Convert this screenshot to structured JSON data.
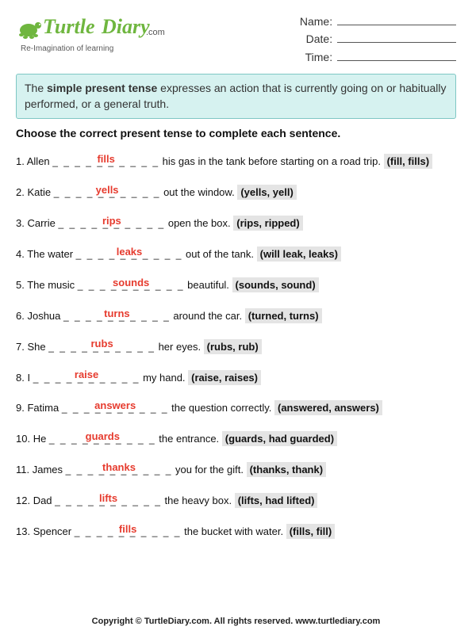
{
  "brand": {
    "name_part1": "Turtle",
    "name_part2": "Diary",
    "dotcom": ".com",
    "tagline": "Re-Imagination of learning",
    "turtle_color": "#6fb63f",
    "text_color": "#6fb63f"
  },
  "meta": {
    "name_label": "Name:",
    "date_label": "Date:",
    "time_label": "Time:"
  },
  "intro": {
    "pre": "The ",
    "bold": "simple present tense",
    "post": " expresses an action that is currently going on or habitually performed, or a general truth."
  },
  "instructions": "Choose the correct present tense to complete each sentence.",
  "blank_dashes": "_ _ _ _ _ _ _ _ _ _",
  "questions": [
    {
      "num": "1.",
      "pre": "Allen ",
      "answer": "fills",
      "post": " his gas in the tank before starting on a road trip.  ",
      "choices": "(fill, fills)"
    },
    {
      "num": "2.",
      "pre": "Katie ",
      "answer": "yells",
      "post": " out the window.  ",
      "choices": "(yells, yell)"
    },
    {
      "num": "3.",
      "pre": "Carrie ",
      "answer": "rips",
      "post": " open the box.  ",
      "choices": "(rips, ripped)"
    },
    {
      "num": "4.",
      "pre": "The water ",
      "answer": "leaks",
      "post": " out of the tank.  ",
      "choices": "(will leak, leaks)"
    },
    {
      "num": "5.",
      "pre": "The music ",
      "answer": "sounds",
      "post": " beautiful. ",
      "choices": "(sounds, sound)"
    },
    {
      "num": "6.",
      "pre": "Joshua ",
      "answer": "turns",
      "post": " around the car.  ",
      "choices": "(turned, turns)"
    },
    {
      "num": "7.",
      "pre": "She ",
      "answer": "rubs",
      "post": " her eyes.  ",
      "choices": "(rubs, rub)"
    },
    {
      "num": "8.",
      "pre": "I ",
      "answer": "raise",
      "post": " my hand.  ",
      "choices": "(raise, raises)"
    },
    {
      "num": "9.",
      "pre": "Fatima ",
      "answer": "answers",
      "post": " the question correctly.  ",
      "choices": "(answered, answers)"
    },
    {
      "num": "10.",
      "pre": "He ",
      "answer": "guards",
      "post": " the entrance.  ",
      "choices": "(guards, had guarded)"
    },
    {
      "num": "11.",
      "pre": "James ",
      "answer": "thanks",
      "post": " you for the gift.  ",
      "choices": "(thanks, thank)"
    },
    {
      "num": "12.",
      "pre": "Dad ",
      "answer": "lifts",
      "post": " the heavy box. ",
      "choices": "(lifts, had lifted)"
    },
    {
      "num": "13.",
      "pre": "Spencer ",
      "answer": "fills",
      "post": " the bucket with water.  ",
      "choices": "(fills, fill)"
    }
  ],
  "footer": "Copyright © TurtleDiary.com. All rights reserved. www.turtlediary.com"
}
